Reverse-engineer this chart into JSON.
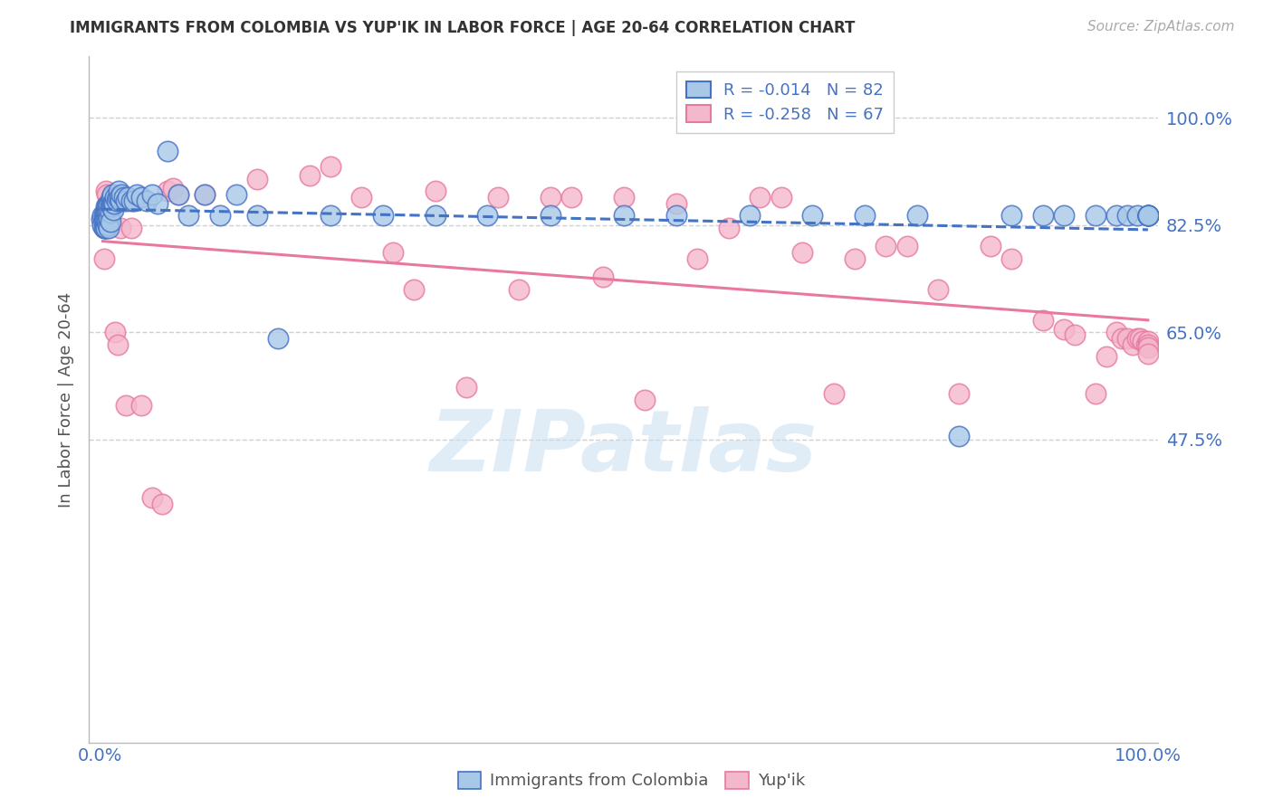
{
  "title": "IMMIGRANTS FROM COLOMBIA VS YUP'IK IN LABOR FORCE | AGE 20-64 CORRELATION CHART",
  "source": "Source: ZipAtlas.com",
  "ylabel": "In Labor Force | Age 20-64",
  "xlim": [
    -0.01,
    1.01
  ],
  "ylim": [
    -0.02,
    1.1
  ],
  "yticks": [
    0.475,
    0.65,
    0.825,
    1.0
  ],
  "ytick_labels": [
    "47.5%",
    "65.0%",
    "82.5%",
    "100.0%"
  ],
  "xtick_left": "0.0%",
  "xtick_right": "100.0%",
  "colombia_color": "#a8c8e8",
  "colombia_edge": "#4472c4",
  "yupik_color": "#f4b8cc",
  "yupik_edge": "#e878a0",
  "colombia_R": -0.014,
  "colombia_N": 82,
  "yupik_R": -0.258,
  "yupik_N": 67,
  "colombia_line_color": "#4472c4",
  "yupik_line_color": "#e878a0",
  "right_label_color": "#4472c4",
  "watermark_color": "#c8dff0",
  "background_color": "#ffffff",
  "grid_color": "#bbbbbb",
  "colombia_x": [
    0.002,
    0.003,
    0.003,
    0.004,
    0.004,
    0.004,
    0.005,
    0.005,
    0.005,
    0.006,
    0.006,
    0.006,
    0.006,
    0.007,
    0.007,
    0.007,
    0.008,
    0.008,
    0.008,
    0.009,
    0.009,
    0.009,
    0.009,
    0.01,
    0.01,
    0.01,
    0.011,
    0.011,
    0.012,
    0.012,
    0.013,
    0.013,
    0.014,
    0.015,
    0.016,
    0.017,
    0.018,
    0.019,
    0.02,
    0.021,
    0.023,
    0.025,
    0.027,
    0.03,
    0.033,
    0.035,
    0.04,
    0.045,
    0.05,
    0.055,
    0.065,
    0.075,
    0.085,
    0.1,
    0.115,
    0.13,
    0.15,
    0.17,
    0.22,
    0.27,
    0.32,
    0.37,
    0.43,
    0.5,
    0.55,
    0.62,
    0.68,
    0.73,
    0.78,
    0.82,
    0.87,
    0.9,
    0.92,
    0.95,
    0.97,
    0.98,
    0.99,
    1.0,
    1.0,
    1.0,
    1.0,
    1.0
  ],
  "colombia_y": [
    0.835,
    0.84,
    0.825,
    0.84,
    0.83,
    0.82,
    0.845,
    0.835,
    0.82,
    0.855,
    0.845,
    0.835,
    0.82,
    0.855,
    0.845,
    0.83,
    0.855,
    0.84,
    0.825,
    0.855,
    0.845,
    0.835,
    0.82,
    0.855,
    0.845,
    0.83,
    0.87,
    0.855,
    0.875,
    0.86,
    0.86,
    0.85,
    0.86,
    0.87,
    0.865,
    0.87,
    0.88,
    0.87,
    0.865,
    0.875,
    0.87,
    0.865,
    0.87,
    0.865,
    0.865,
    0.875,
    0.87,
    0.865,
    0.875,
    0.86,
    0.945,
    0.875,
    0.84,
    0.875,
    0.84,
    0.875,
    0.84,
    0.64,
    0.84,
    0.84,
    0.84,
    0.84,
    0.84,
    0.84,
    0.84,
    0.84,
    0.84,
    0.84,
    0.84,
    0.48,
    0.84,
    0.84,
    0.84,
    0.84,
    0.84,
    0.84,
    0.84,
    0.84,
    0.84,
    0.84,
    0.84,
    0.84
  ],
  "yupik_x": [
    0.003,
    0.004,
    0.006,
    0.007,
    0.008,
    0.009,
    0.01,
    0.011,
    0.013,
    0.015,
    0.017,
    0.02,
    0.025,
    0.03,
    0.04,
    0.05,
    0.06,
    0.065,
    0.07,
    0.075,
    0.1,
    0.15,
    0.2,
    0.22,
    0.25,
    0.28,
    0.3,
    0.32,
    0.35,
    0.38,
    0.4,
    0.43,
    0.45,
    0.48,
    0.5,
    0.52,
    0.55,
    0.57,
    0.6,
    0.63,
    0.65,
    0.67,
    0.7,
    0.72,
    0.75,
    0.77,
    0.8,
    0.82,
    0.85,
    0.87,
    0.9,
    0.92,
    0.93,
    0.95,
    0.96,
    0.97,
    0.975,
    0.98,
    0.985,
    0.99,
    0.992,
    0.995,
    0.998,
    1.0,
    1.0,
    1.0,
    1.0
  ],
  "yupik_y": [
    0.83,
    0.77,
    0.88,
    0.875,
    0.86,
    0.83,
    0.855,
    0.86,
    0.875,
    0.65,
    0.63,
    0.82,
    0.53,
    0.82,
    0.53,
    0.38,
    0.37,
    0.88,
    0.885,
    0.875,
    0.875,
    0.9,
    0.905,
    0.92,
    0.87,
    0.78,
    0.72,
    0.88,
    0.56,
    0.87,
    0.72,
    0.87,
    0.87,
    0.74,
    0.87,
    0.54,
    0.86,
    0.77,
    0.82,
    0.87,
    0.87,
    0.78,
    0.55,
    0.77,
    0.79,
    0.79,
    0.72,
    0.55,
    0.79,
    0.77,
    0.67,
    0.655,
    0.645,
    0.55,
    0.61,
    0.65,
    0.64,
    0.64,
    0.63,
    0.64,
    0.64,
    0.635,
    0.63,
    0.635,
    0.63,
    0.625,
    0.615
  ],
  "watermark": "ZIPatlas"
}
